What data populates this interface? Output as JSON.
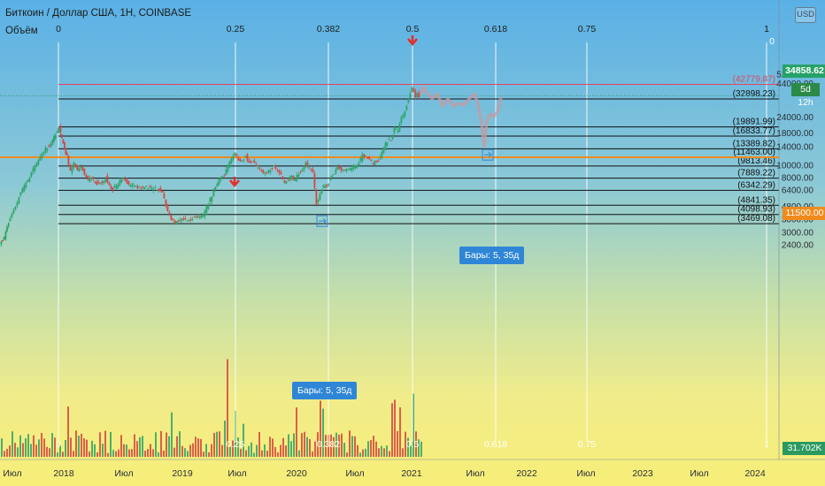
{
  "header": {
    "symbol_title": "Биткоин / Доллар США, 1H, COINBASE",
    "volume_label": "Объём",
    "currency_badge": "USD"
  },
  "colors": {
    "fib_line": "#111111",
    "fib_vline": "#ffffff",
    "up_candle": "#2ea36a",
    "down_candle": "#d64541",
    "highlight_level": "#f08a1d",
    "projection": "#c79aa0",
    "arrow": "#e0322e",
    "callout": "#2f86d6",
    "tag_green": "#26a269"
  },
  "price_tags": {
    "last": "34858.62",
    "countdown": "5d 12h",
    "level": "11500.00",
    "volume": "31.702K"
  },
  "callouts": {
    "upper": "Бары: 5, 35д",
    "lower": "Бары: 5, 35д"
  },
  "chart_data": {
    "type": "candlestick",
    "y_scale": "log",
    "x_axis_labels": [
      "Июл",
      "2018",
      "Июл",
      "2019",
      "Июл",
      "2020",
      "Июл",
      "2021",
      "Июл",
      "2022",
      "Июл",
      "2023",
      "Июл",
      "2024"
    ],
    "y_axis_labels": [
      2400,
      3000,
      3800,
      4800,
      6400,
      8000,
      10000,
      14000,
      18000,
      24000,
      44000,
      52000
    ],
    "y_axis_label_text": [
      "2400.00",
      "3000.00",
      "3800.00",
      "4800.00",
      "6400.00",
      "8000.00",
      "10000.00",
      "14000.00",
      "18000.00",
      "24000.00",
      "44000.00",
      "52000.00"
    ],
    "fib_time_zones": {
      "top_labels": [
        "0",
        "0.25",
        "0.382",
        "0.5",
        "0.618",
        "0.75",
        "1"
      ],
      "bottom_labels": [
        "0",
        "0.25",
        "0.382",
        "0.5",
        "0.618",
        "0.75",
        "1"
      ],
      "right_label": "0"
    },
    "fib_levels": [
      {
        "price": 42779.87,
        "label": "(42779.87)"
      },
      {
        "price": 32898.23,
        "label": "(32898.23)"
      },
      {
        "price": 19891.99,
        "label": "(19891.99)"
      },
      {
        "price": 16833.77,
        "label": "(16833.77)"
      },
      {
        "price": 13389.82,
        "label": "(13389.82)"
      },
      {
        "price": 11463.0,
        "label": "(11463.00)"
      },
      {
        "price": 9813.46,
        "label": "(9813.46)"
      },
      {
        "price": 7889.22,
        "label": "(7889.22)"
      },
      {
        "price": 6342.29,
        "label": "(6342.29)"
      },
      {
        "price": 4841.35,
        "label": "(4841.35)"
      },
      {
        "price": 4098.93,
        "label": "(4098.93)"
      },
      {
        "price": 3469.08,
        "label": "(3469.08)"
      }
    ],
    "highlight_level": 11500.0,
    "last_price": 34858.62,
    "price_path": [
      [
        0,
        2400
      ],
      [
        5,
        2700
      ],
      [
        10,
        3500
      ],
      [
        16,
        4400
      ],
      [
        22,
        5600
      ],
      [
        28,
        6800
      ],
      [
        34,
        8000
      ],
      [
        40,
        9800
      ],
      [
        46,
        11500
      ],
      [
        52,
        13500
      ],
      [
        58,
        14500
      ],
      [
        63,
        17500
      ],
      [
        67,
        19600
      ],
      [
        70,
        16000
      ],
      [
        73,
        13500
      ],
      [
        76,
        11600
      ],
      [
        80,
        9000
      ],
      [
        84,
        10400
      ],
      [
        88,
        9200
      ],
      [
        92,
        9600
      ],
      [
        96,
        8500
      ],
      [
        100,
        7500
      ],
      [
        104,
        8000
      ],
      [
        108,
        7300
      ],
      [
        112,
        7000
      ],
      [
        116,
        7400
      ],
      [
        120,
        8000
      ],
      [
        124,
        6800
      ],
      [
        128,
        6500
      ],
      [
        132,
        6800
      ],
      [
        136,
        7400
      ],
      [
        140,
        7800
      ],
      [
        146,
        6900
      ],
      [
        152,
        7000
      ],
      [
        158,
        6600
      ],
      [
        164,
        6800
      ],
      [
        170,
        6500
      ],
      [
        176,
        6600
      ],
      [
        182,
        6400
      ],
      [
        186,
        5500
      ],
      [
        190,
        4300
      ],
      [
        194,
        3800
      ],
      [
        198,
        3500
      ],
      [
        202,
        3600
      ],
      [
        206,
        3900
      ],
      [
        212,
        3700
      ],
      [
        218,
        3800
      ],
      [
        224,
        3900
      ],
      [
        230,
        4100
      ],
      [
        236,
        5000
      ],
      [
        242,
        6300
      ],
      [
        248,
        7800
      ],
      [
        254,
        8500
      ],
      [
        258,
        9800
      ],
      [
        262,
        11000
      ],
      [
        266,
        12300
      ],
      [
        270,
        11000
      ],
      [
        274,
        10500
      ],
      [
        278,
        11800
      ],
      [
        282,
        10300
      ],
      [
        286,
        10500
      ],
      [
        290,
        9800
      ],
      [
        294,
        9400
      ],
      [
        298,
        8400
      ],
      [
        302,
        8900
      ],
      [
        306,
        9200
      ],
      [
        310,
        9800
      ],
      [
        314,
        9000
      ],
      [
        318,
        8300
      ],
      [
        322,
        7400
      ],
      [
        326,
        7800
      ],
      [
        330,
        8000
      ],
      [
        334,
        7600
      ],
      [
        338,
        8700
      ],
      [
        342,
        9000
      ],
      [
        346,
        10200
      ],
      [
        350,
        9700
      ],
      [
        354,
        8700
      ],
      [
        358,
        5000
      ],
      [
        362,
        6000
      ],
      [
        366,
        6800
      ],
      [
        370,
        6900
      ],
      [
        374,
        7800
      ],
      [
        378,
        8800
      ],
      [
        382,
        9500
      ],
      [
        386,
        9300
      ],
      [
        390,
        9200
      ],
      [
        394,
        9300
      ],
      [
        398,
        9400
      ],
      [
        402,
        9800
      ],
      [
        406,
        10500
      ],
      [
        410,
        11800
      ],
      [
        414,
        11500
      ],
      [
        418,
        11000
      ],
      [
        422,
        10400
      ],
      [
        426,
        10700
      ],
      [
        430,
        11300
      ],
      [
        434,
        13500
      ],
      [
        438,
        15500
      ],
      [
        442,
        16000
      ],
      [
        446,
        19000
      ],
      [
        450,
        18500
      ],
      [
        454,
        23000
      ],
      [
        458,
        27000
      ],
      [
        462,
        33000
      ],
      [
        466,
        40000
      ],
      [
        468,
        37000
      ],
      [
        470,
        34000
      ],
      [
        472,
        36000
      ],
      [
        474,
        34858.62
      ]
    ],
    "projection_path": [
      [
        474,
        34858.62
      ],
      [
        478,
        41000
      ],
      [
        482,
        37000
      ],
      [
        488,
        33000
      ],
      [
        494,
        36000
      ],
      [
        500,
        29000
      ],
      [
        506,
        33000
      ],
      [
        512,
        29000
      ],
      [
        518,
        30500
      ],
      [
        524,
        29500
      ],
      [
        530,
        33000
      ],
      [
        536,
        36000
      ],
      [
        540,
        30000
      ],
      [
        544,
        21000
      ],
      [
        547,
        14000
      ],
      [
        550,
        22000
      ],
      [
        554,
        25000
      ],
      [
        558,
        24000
      ],
      [
        562,
        26000
      ],
      [
        566,
        34000
      ]
    ],
    "arrows_at_x": [
      265,
      466
    ],
    "bars_pattern_markers": [
      {
        "x": 364,
        "price": 3469.08
      },
      {
        "x": 551,
        "price": 11463.0
      }
    ]
  }
}
